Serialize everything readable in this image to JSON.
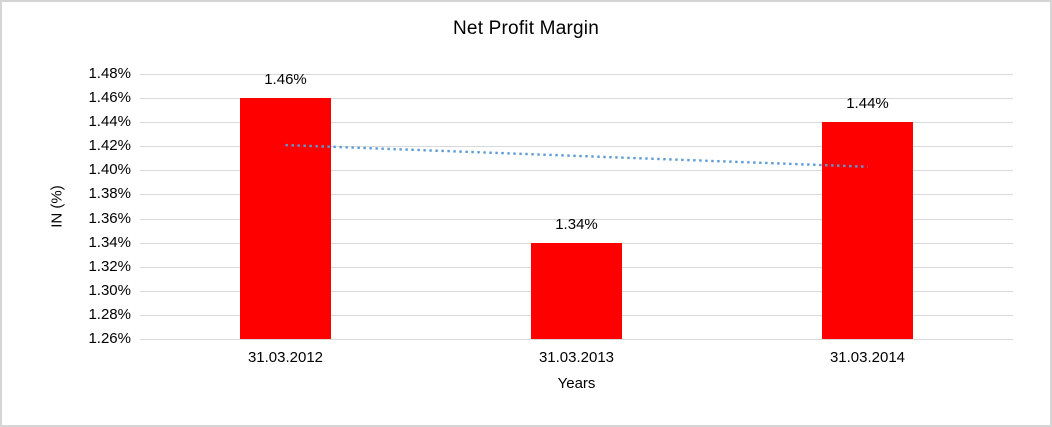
{
  "chart_data": {
    "type": "bar",
    "title": "Net Profit Margin",
    "xlabel": "Years",
    "ylabel": "IN (%)",
    "categories": [
      "31.03.2012",
      "31.03.2013",
      "31.03.2014"
    ],
    "values": [
      1.46,
      1.34,
      1.44
    ],
    "data_labels": [
      "1.46%",
      "1.34%",
      "1.44%"
    ],
    "ytick_labels": [
      "1.48%",
      "1.46%",
      "1.44%",
      "1.42%",
      "1.40%",
      "1.38%",
      "1.36%",
      "1.34%",
      "1.32%",
      "1.30%",
      "1.28%",
      "1.26%"
    ],
    "ylim": [
      1.26,
      1.48
    ],
    "ytick_step": 0.02,
    "grid": true,
    "legend": "none",
    "bar_color": "#ff0000",
    "gridline_color": "#d9d9d9",
    "trendline": {
      "type": "linear",
      "style": "dotted",
      "color": "#5b9bd5",
      "start_value": 1.421,
      "end_value": 1.403
    }
  }
}
